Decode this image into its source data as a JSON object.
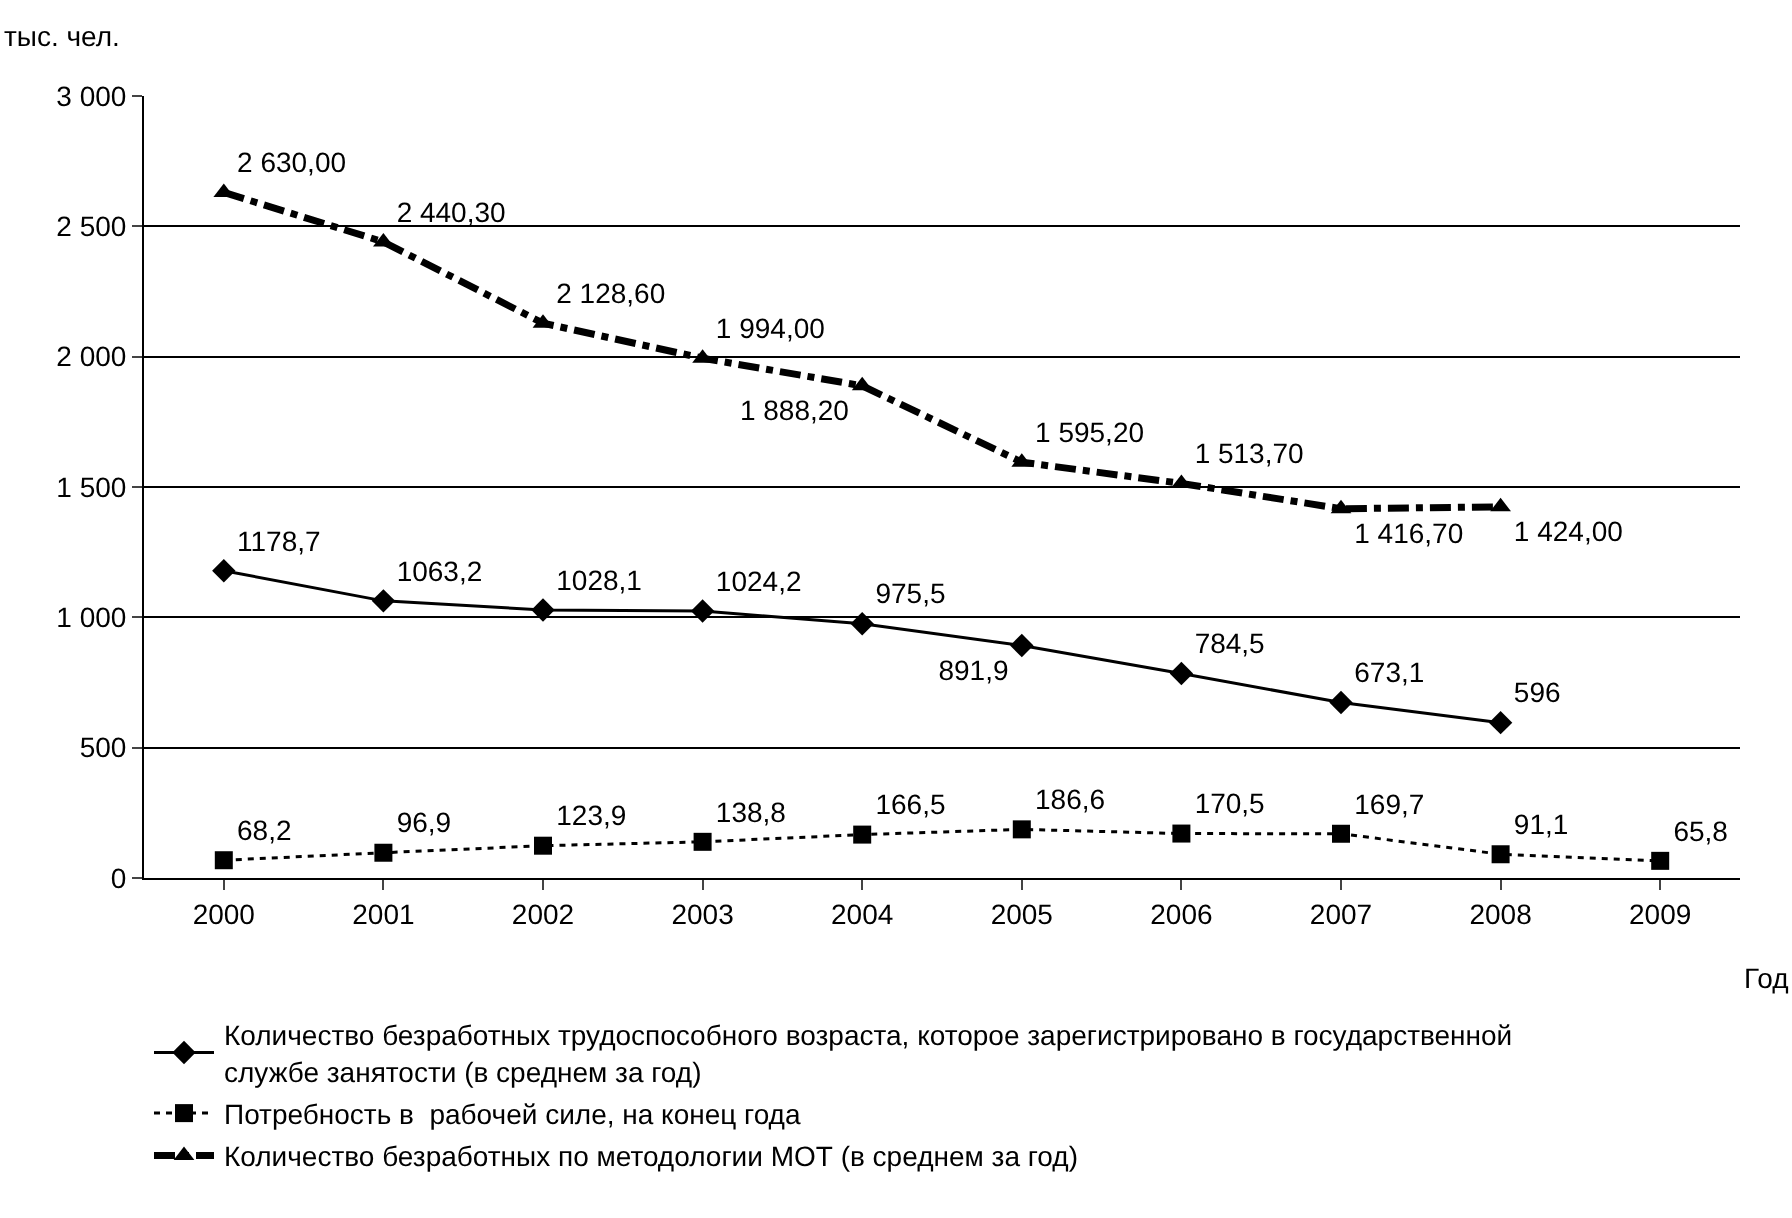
{
  "chart_data": {
    "type": "line",
    "ylabel": "тыс. чел.",
    "xlabel": "Год",
    "categories": [
      "2000",
      "2001",
      "2002",
      "2003",
      "2004",
      "2005",
      "2006",
      "2007",
      "2008",
      "2009"
    ],
    "series": [
      {
        "name": "Количество безработных трудоспособного возраста, которое зарегистрировано в государственной службе занятости (в среднем за год)",
        "color": "#000000",
        "marker": "diamond",
        "line_style": "solid",
        "values": [
          1178.7,
          1063.2,
          1028.1,
          1024.2,
          975.5,
          891.9,
          784.5,
          673.1,
          596,
          null
        ],
        "value_labels": [
          "1178,7",
          "1063,2",
          "1028,1",
          "1024,2",
          "975,5",
          "891,9",
          "784,5",
          "673,1",
          "596",
          null
        ]
      },
      {
        "name": "Потребность в  рабочей силе, на конец года",
        "color": "#000000",
        "marker": "square",
        "line_style": "dotted",
        "values": [
          68.2,
          96.9,
          123.9,
          138.8,
          166.5,
          186.6,
          170.5,
          169.7,
          91.1,
          65.8
        ],
        "value_labels": [
          "68,2",
          "96,9",
          "123,9",
          "138,8",
          "166,5",
          "186,6",
          "170,5",
          "169,7",
          "91,1",
          "65,8"
        ]
      },
      {
        "name": "Количество безработных по методологии МОТ (в среднем за год)",
        "color": "#000000",
        "marker": "triangle",
        "line_style": "dashed",
        "values": [
          2630.0,
          2440.3,
          2128.6,
          1994.0,
          1888.2,
          1595.2,
          1513.7,
          1416.7,
          1424.0,
          null
        ],
        "value_labels": [
          "2 630,00",
          "2 440,30",
          "2 128,60",
          "1 994,00",
          "1 888,20",
          "1 595,20",
          "1 513,70",
          "1 416,70",
          "1 424,00",
          null
        ]
      }
    ],
    "ylim": [
      0,
      3000
    ],
    "yticks": [
      0,
      {
        "value": 500,
        "label": "500"
      },
      {
        "value": 1000,
        "label": "1 000"
      },
      {
        "value": 1500,
        "label": "1 500"
      },
      {
        "value": 2000,
        "label": "2 000"
      },
      {
        "value": 2500,
        "label": "2 500"
      },
      {
        "value": 3000,
        "label": "3 000"
      }
    ],
    "grid": "y",
    "legend": "bottom"
  }
}
